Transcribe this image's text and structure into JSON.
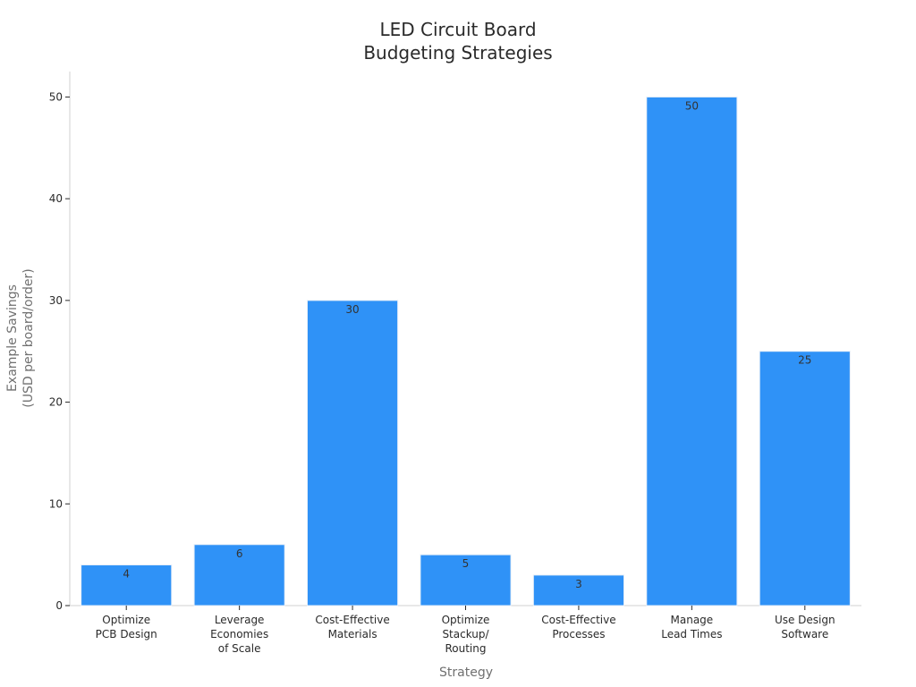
{
  "chart_data": {
    "type": "bar",
    "title": "LED Circuit Board\nBudgeting Strategies",
    "xlabel": "Strategy",
    "ylabel": "Example Savings\n(USD per board/order)",
    "categories": [
      "Optimize\nPCB Design",
      "Leverage\nEconomies\nof Scale",
      "Cost-Effective\nMaterials",
      "Optimize\nStackup/\nRouting",
      "Cost-Effective\nProcesses",
      "Manage\nLead Times",
      "Use Design\nSoftware"
    ],
    "values": [
      4,
      6,
      30,
      5,
      3,
      50,
      25
    ],
    "data_labels": [
      "4",
      "6",
      "30",
      "5",
      "3",
      "50",
      "25"
    ],
    "ylim": [
      0,
      52.5
    ],
    "yticks": [
      0,
      10,
      20,
      30,
      40,
      50
    ],
    "ytick_labels": [
      "0",
      "10",
      "20",
      "30",
      "40",
      "50"
    ],
    "grid": false,
    "bar_color": "#2f92f7"
  }
}
